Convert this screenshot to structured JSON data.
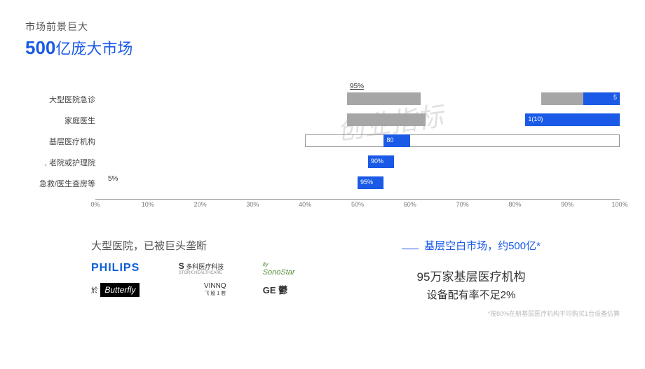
{
  "header": {
    "subtitle": "市场前景巨大",
    "title_num": "500",
    "title_rest": "亿庞大市场"
  },
  "watermark": "创业指标",
  "chart": {
    "type": "bar",
    "xlim": [
      0,
      100
    ],
    "xticks": [
      0,
      10,
      20,
      30,
      40,
      50,
      60,
      70,
      80,
      90,
      100
    ],
    "xtick_labels": [
      "0%",
      "10%",
      "20%",
      "30%",
      "40%",
      "50%",
      "60%",
      "70%",
      "80%",
      "90%",
      "100%"
    ],
    "axis_color": "#888",
    "label_fontsize": 11,
    "rows": [
      {
        "label": "大型医院急诊",
        "bars": [
          {
            "from": 48,
            "to": 62,
            "color": "#a6a6a6",
            "val": "95%",
            "val_pos": "above-left"
          },
          {
            "from": 85,
            "to": 100,
            "color": "#a6a6a6"
          },
          {
            "from": 93,
            "to": 100,
            "color": "#1a5ae6",
            "val": "5",
            "val_pos": "right",
            "text_color": "#fff"
          }
        ]
      },
      {
        "label": "家庭医生",
        "bars": [
          {
            "from": 48,
            "to": 63,
            "color": "#a6a6a6"
          },
          {
            "from": 82,
            "to": 100,
            "color": "#1a5ae6",
            "inner": "1(10)",
            "sq": true
          }
        ]
      },
      {
        "label": "基层医疗机构",
        "bars": [
          {
            "from": 40,
            "to": 100,
            "border": true
          },
          {
            "from": 55,
            "to": 60,
            "color": "#1a5ae6",
            "inner": "80"
          }
        ]
      },
      {
        "label": ", 老院或护理院",
        "bars": [
          {
            "from": 52,
            "to": 57,
            "color": "#1a5ae6",
            "inner": "90%"
          }
        ]
      },
      {
        "label": "急救/医生查房等",
        "left_val": "5%",
        "bars": [
          {
            "from": 50,
            "to": 55,
            "color": "#1a5ae6",
            "inner": "95%"
          }
        ]
      }
    ]
  },
  "left": {
    "title": "大型医院，已被巨头垄断",
    "logos": {
      "philips": "PHILIPS",
      "stork_s": "S",
      "stork": "多科医疗科技",
      "stork_en": "STORK HEALTHCARE",
      "sono": "SonoStar",
      "butterfly_pre": "於",
      "butterfly": "Butterfly",
      "vinno": "VINNQ",
      "vinno_sub": "飞 股 1 若",
      "ge": "GE 鬱"
    }
  },
  "right": {
    "title": "基层空白市场，约500亿*",
    "line1": "95万家基层医疗机构",
    "line2": "设备配有率不足2%",
    "foot": "*按80%在册基层医疗机构平均购买1台设备估算"
  }
}
